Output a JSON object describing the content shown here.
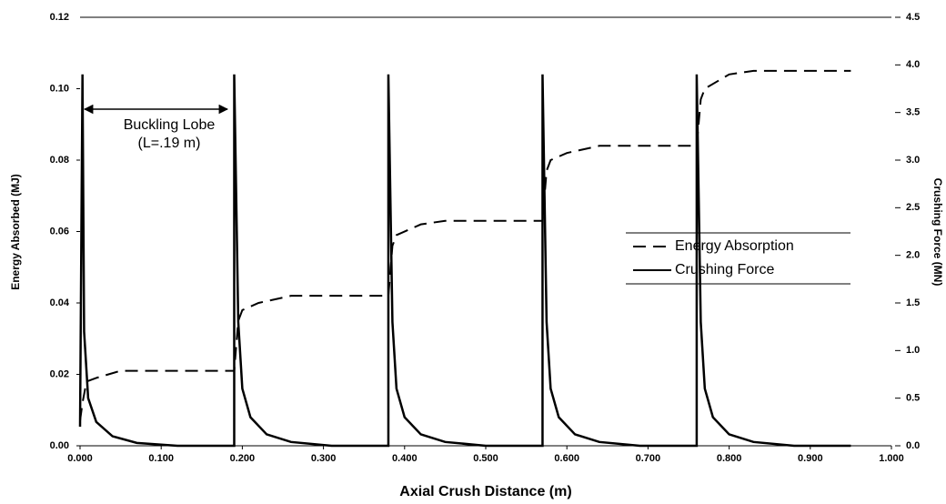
{
  "chart_data": {
    "type": "line",
    "x_label": "Axial Crush Distance  (m)",
    "y_label": "Energy Absorbed (MJ)",
    "y2_label": "Crushing Force (MN)",
    "annotations": [
      "Buckling Lobe",
      "(L=.19 m)"
    ],
    "legend": "right",
    "xlim": [
      0,
      1
    ],
    "xticks": [
      {
        "value": 0,
        "label": "0.000"
      },
      {
        "value": 0.1,
        "label": "0.100"
      },
      {
        "value": 0.2,
        "label": "0.200"
      },
      {
        "value": 0.3,
        "label": "0.300"
      },
      {
        "value": 0.4,
        "label": "0.400"
      },
      {
        "value": 0.5,
        "label": "0.500"
      },
      {
        "value": 0.6,
        "label": "0.600"
      },
      {
        "value": 0.7,
        "label": "0.700"
      },
      {
        "value": 0.8,
        "label": "0.800"
      },
      {
        "value": 0.9,
        "label": "0.900"
      },
      {
        "value": 1,
        "label": "1.000"
      }
    ],
    "ylim": [
      0,
      0.12
    ],
    "yticks": [
      {
        "value": 0,
        "label": "0.00"
      },
      0.02,
      0.04,
      0.06,
      0.08,
      {
        "value": 0.1,
        "label": "0.10"
      },
      0.12
    ],
    "y2lim": [
      0,
      4.5
    ],
    "y2ticks": [
      {
        "value": 0,
        "label": "0.0"
      },
      0.5,
      {
        "value": 1,
        "label": "1.0"
      },
      1.5,
      {
        "value": 2,
        "label": "2.0"
      },
      2.5,
      {
        "value": 3,
        "label": "3.0"
      },
      3.5,
      {
        "value": 4,
        "label": "4.0"
      },
      4.5
    ],
    "series": [
      {
        "name": "Energy Absorption",
        "color": "#000000",
        "style": "dashed",
        "x": [
          0.0,
          0.003,
          0.008,
          0.02,
          0.05,
          0.07,
          0.19,
          0.195,
          0.2,
          0.22,
          0.26,
          0.38,
          0.385,
          0.39,
          0.42,
          0.45,
          0.57,
          0.575,
          0.58,
          0.6,
          0.64,
          0.76,
          0.765,
          0.77,
          0.8,
          0.83,
          0.95
        ],
        "values": [
          0.007,
          0.012,
          0.018,
          0.019,
          0.021,
          0.021,
          0.021,
          0.035,
          0.038,
          0.04,
          0.042,
          0.042,
          0.056,
          0.059,
          0.062,
          0.063,
          0.063,
          0.077,
          0.08,
          0.082,
          0.084,
          0.084,
          0.097,
          0.1,
          0.104,
          0.105,
          0.105
        ]
      },
      {
        "name": "Crushing Force",
        "color": "#000000",
        "style": "solid",
        "axis": "y2",
        "x": [
          0.0,
          0.003,
          0.005,
          0.01,
          0.02,
          0.04,
          0.07,
          0.12,
          0.19,
          0.19,
          0.195,
          0.2,
          0.21,
          0.23,
          0.26,
          0.31,
          0.38,
          0.38,
          0.385,
          0.39,
          0.4,
          0.42,
          0.45,
          0.5,
          0.57,
          0.57,
          0.575,
          0.58,
          0.59,
          0.61,
          0.64,
          0.69,
          0.76,
          0.76,
          0.765,
          0.77,
          0.78,
          0.8,
          0.83,
          0.88,
          0.95
        ],
        "values": [
          0.2,
          3.9,
          1.2,
          0.5,
          0.25,
          0.1,
          0.03,
          0.0,
          0.0,
          3.9,
          1.3,
          0.6,
          0.3,
          0.12,
          0.04,
          0.0,
          0.0,
          3.9,
          1.3,
          0.6,
          0.3,
          0.12,
          0.04,
          0.0,
          0.0,
          3.9,
          1.3,
          0.6,
          0.3,
          0.12,
          0.04,
          0.0,
          0.0,
          3.9,
          1.3,
          0.6,
          0.3,
          0.12,
          0.04,
          0.0,
          0.0
        ]
      }
    ]
  }
}
